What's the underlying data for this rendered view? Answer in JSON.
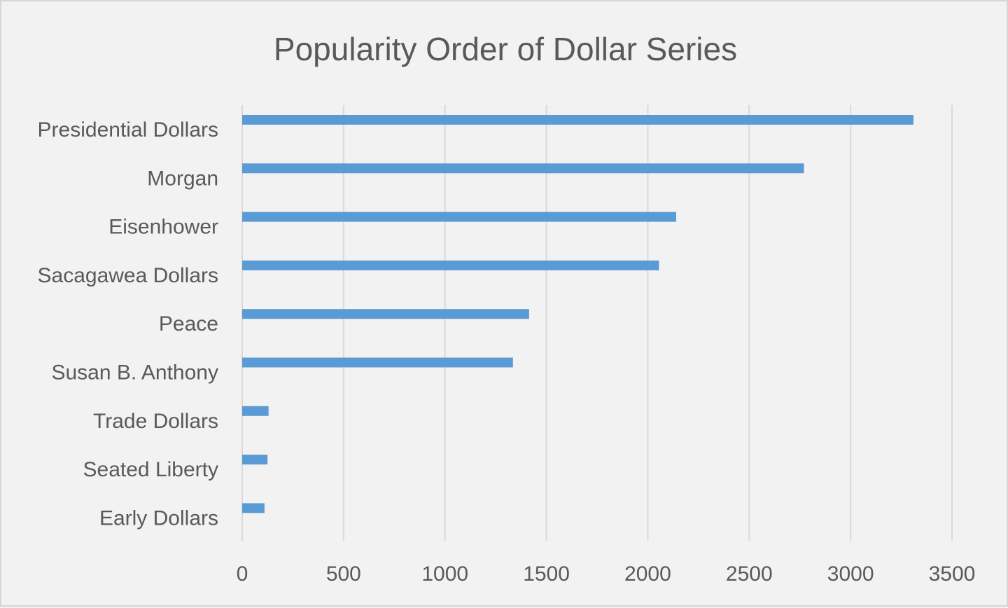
{
  "chart_data": {
    "type": "bar",
    "orientation": "horizontal",
    "title": "Popularity Order of Dollar Series",
    "xlabel": "",
    "ylabel": "",
    "categories": [
      "Presidential Dollars",
      "Morgan",
      "Eisenhower",
      "Sacagawea Dollars",
      "Peace",
      "Susan B. Anthony",
      "Trade Dollars",
      "Seated Liberty",
      "Early Dollars"
    ],
    "values": [
      3310,
      2770,
      2140,
      2055,
      1415,
      1335,
      130,
      125,
      110
    ],
    "xlim": [
      0,
      3500
    ],
    "xticks": [
      0,
      500,
      1000,
      1500,
      2000,
      2500,
      3000,
      3500
    ],
    "grid": "vertical",
    "legend": "none",
    "bar_color": "#5b9bd5",
    "background_color": "#f2f2f2",
    "grid_color": "#d9d9d9",
    "text_color": "#595959"
  }
}
